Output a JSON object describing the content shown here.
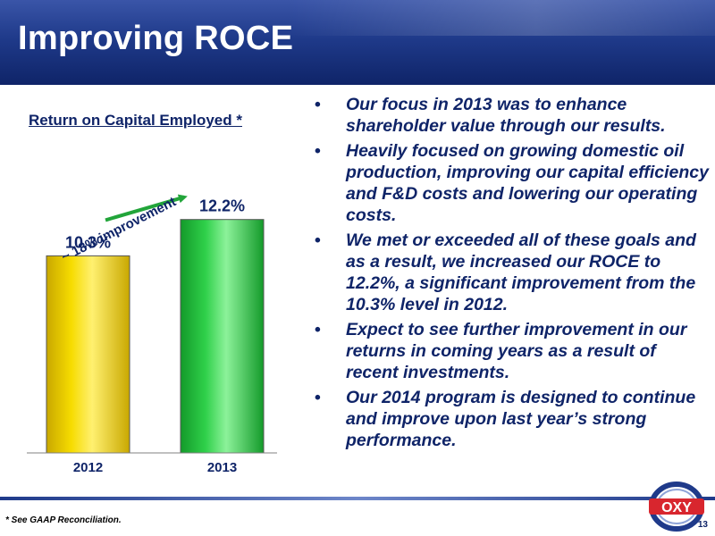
{
  "slide": {
    "title": "Improving ROCE",
    "footnote": "* See GAAP Reconciliation.",
    "page_number": "13",
    "logo_text": "OXY"
  },
  "bullets": [
    "Our focus in 2013 was to enhance shareholder value through our results.",
    "Heavily focused on growing domestic oil production, improving our capital efficiency and F&D costs and lowering our operating costs.",
    "We met or exceeded all of these goals and as a result, we increased our ROCE to 12.2%, a significant improvement from the 10.3% level in 2012.",
    "Expect to see further improvement in our returns in coming years as a result of recent investments.",
    "Our 2014 program is designed to continue and improve upon last year’s strong performance."
  ],
  "chart_data": {
    "type": "bar",
    "title": "Return on Capital Employed *",
    "categories": [
      "2012",
      "2013"
    ],
    "values": [
      10.3,
      12.2
    ],
    "data_labels": [
      "10.3%",
      "12.2%"
    ],
    "annotation": "~ 18% improvement",
    "grid": false,
    "legend": "none",
    "colors": [
      "#f0d000",
      "#2ecc40"
    ]
  },
  "colors": {
    "header": "#1f3a8a",
    "text": "#0f2468",
    "arrow": "#22a53a",
    "logo_red": "#d8262e"
  }
}
